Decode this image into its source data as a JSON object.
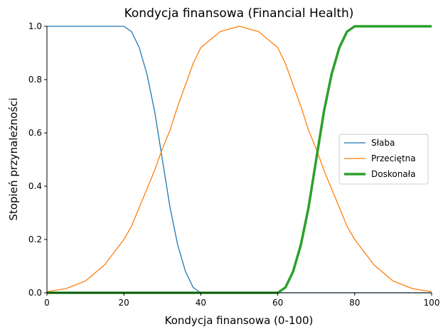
{
  "chart_data": {
    "type": "line",
    "title": "Kondycja finansowa (Financial Health)",
    "xlabel": "Kondycja finansowa (0-100)",
    "ylabel": "Stopień przynależności",
    "xlim": [
      0,
      100
    ],
    "ylim": [
      0,
      1
    ],
    "xticks": [
      "0",
      "20",
      "40",
      "60",
      "80",
      "100"
    ],
    "yticks": [
      "0.0",
      "0.2",
      "0.4",
      "0.6",
      "0.8",
      "1.0"
    ],
    "grid": false,
    "legend_position": "center-right",
    "x": [
      0,
      5,
      10,
      15,
      20,
      22,
      24,
      26,
      28,
      30,
      32,
      34,
      36,
      38,
      40,
      45,
      50,
      55,
      60,
      62,
      64,
      66,
      68,
      70,
      72,
      74,
      76,
      78,
      80,
      85,
      90,
      95,
      100
    ],
    "series": [
      {
        "name": "Słaba",
        "color": "#1f77b4",
        "values": [
          1.0,
          1.0,
          1.0,
          1.0,
          1.0,
          0.98,
          0.92,
          0.82,
          0.68,
          0.5,
          0.32,
          0.18,
          0.08,
          0.02,
          0.0,
          0.0,
          0.0,
          0.0,
          0.0,
          0.0,
          0.0,
          0.0,
          0.0,
          0.0,
          0.0,
          0.0,
          0.0,
          0.0,
          0.0,
          0.0,
          0.0,
          0.0,
          0.0
        ]
      },
      {
        "name": "Przeciętna",
        "color": "#ff7f0e",
        "values": [
          0.004,
          0.016,
          0.044,
          0.105,
          0.2,
          0.25,
          0.32,
          0.39,
          0.46,
          0.54,
          0.61,
          0.7,
          0.78,
          0.86,
          0.92,
          0.98,
          1.0,
          0.98,
          0.92,
          0.86,
          0.78,
          0.7,
          0.61,
          0.54,
          0.46,
          0.39,
          0.32,
          0.25,
          0.2,
          0.105,
          0.044,
          0.016,
          0.004
        ]
      },
      {
        "name": "Doskonała",
        "color": "#2ca02c",
        "values": [
          0.0,
          0.0,
          0.0,
          0.0,
          0.0,
          0.0,
          0.0,
          0.0,
          0.0,
          0.0,
          0.0,
          0.0,
          0.0,
          0.0,
          0.0,
          0.0,
          0.0,
          0.0,
          0.0,
          0.02,
          0.08,
          0.18,
          0.32,
          0.5,
          0.68,
          0.82,
          0.92,
          0.98,
          1.0,
          1.0,
          1.0,
          1.0,
          1.0
        ]
      }
    ]
  }
}
